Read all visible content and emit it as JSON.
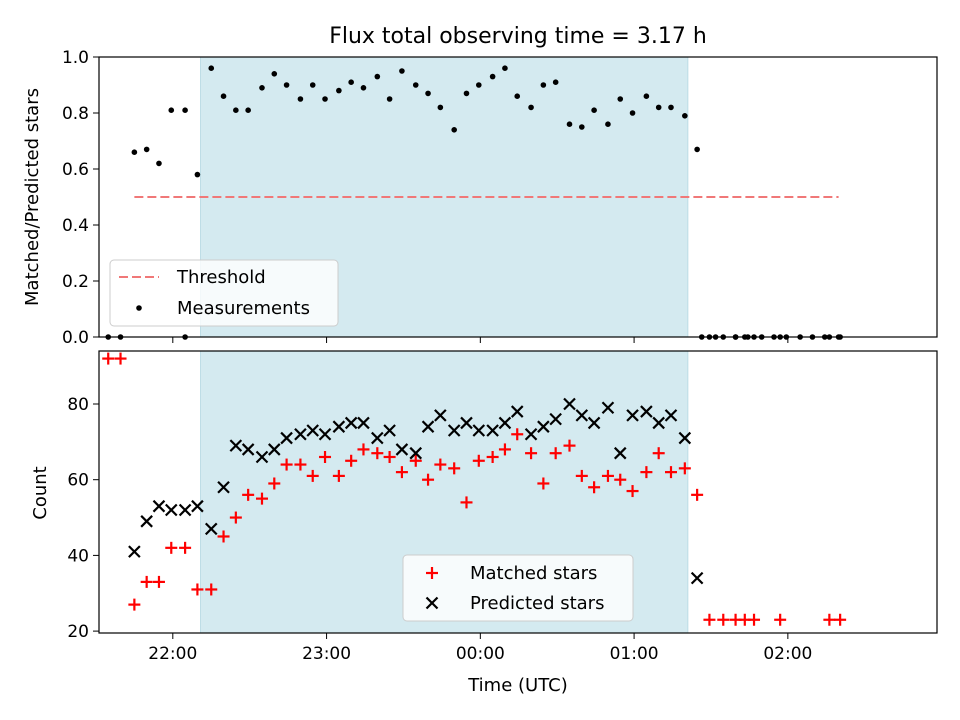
{
  "chart_data": [
    {
      "type": "scatter",
      "title": "Flux total observing time = 3.17 h",
      "xlabel": "",
      "ylabel": "Matched/Predicted stars",
      "xlim": [
        21.52,
        26.97
      ],
      "ylim": [
        0,
        1.0
      ],
      "yticks": [
        "0.0",
        "0.2",
        "0.4",
        "0.6",
        "0.8",
        "1.0"
      ],
      "shaded_span": [
        22.18,
        25.35
      ],
      "shade_color": "#d4eaf0",
      "threshold": {
        "name": "Threshold",
        "y": 0.5,
        "x_range": [
          21.75,
          26.33
        ],
        "color": "#f07878"
      },
      "series": [
        {
          "name": "Measurements",
          "color": "#000000",
          "x": [
            21.75,
            21.83,
            21.91,
            21.99,
            22.08,
            22.16,
            22.25,
            22.33,
            22.41,
            22.49,
            22.58,
            22.66,
            22.74,
            22.83,
            22.91,
            22.99,
            23.08,
            23.16,
            23.24,
            23.33,
            23.41,
            23.49,
            23.58,
            23.66,
            23.74,
            23.83,
            23.91,
            23.99,
            24.08,
            24.16,
            24.24,
            24.33,
            24.41,
            24.49,
            24.58,
            24.66,
            24.74,
            24.83,
            24.91,
            24.99,
            25.08,
            25.16,
            25.24,
            25.33,
            25.41,
            25.49,
            25.58,
            25.66,
            25.74,
            25.83,
            25.91,
            25.99,
            26.08,
            26.16,
            26.24,
            26.33,
            21.58,
            21.66,
            22.08,
            25.44,
            25.53,
            25.66,
            25.72,
            25.78,
            25.95,
            26.27,
            26.34
          ],
          "y": [
            0.66,
            0.67,
            0.62,
            0.81,
            0.81,
            0.58,
            0.96,
            0.86,
            0.81,
            0.81,
            0.89,
            0.94,
            0.9,
            0.85,
            0.9,
            0.85,
            0.88,
            0.91,
            0.89,
            0.93,
            0.85,
            0.95,
            0.9,
            0.87,
            0.82,
            0.74,
            0.87,
            0.9,
            0.93,
            0.96,
            0.86,
            0.82,
            0.9,
            0.91,
            0.76,
            0.75,
            0.81,
            0.76,
            0.85,
            0.8,
            0.86,
            0.82,
            0.82,
            0.79,
            0.67,
            0,
            0,
            0,
            0,
            0,
            0,
            0,
            0,
            0,
            0,
            0,
            0,
            0,
            0,
            0,
            0,
            0,
            0,
            0,
            0,
            0,
            0
          ]
        }
      ],
      "legend": {
        "placement": "lower-left",
        "entries": [
          "Threshold",
          "Measurements"
        ]
      }
    },
    {
      "type": "scatter",
      "title": "",
      "xlabel": "Time (UTC)",
      "ylabel": "Count",
      "xlim": [
        21.52,
        26.97
      ],
      "ylim": [
        19.5,
        94
      ],
      "yticks": [
        "20",
        "40",
        "60",
        "80"
      ],
      "xticks": [
        "22:00",
        "23:00",
        "00:00",
        "01:00",
        "02:00"
      ],
      "shaded_span": [
        22.18,
        25.35
      ],
      "series": [
        {
          "name": "Matched stars",
          "marker": "plus",
          "color": "#ff0000",
          "x": [
            21.58,
            21.66,
            21.75,
            21.83,
            21.91,
            21.99,
            22.08,
            22.16,
            22.25,
            22.33,
            22.41,
            22.49,
            22.58,
            22.66,
            22.74,
            22.83,
            22.91,
            22.99,
            23.08,
            23.16,
            23.24,
            23.33,
            23.41,
            23.49,
            23.58,
            23.66,
            23.74,
            23.83,
            23.91,
            23.99,
            24.08,
            24.16,
            24.24,
            24.33,
            24.41,
            24.49,
            24.58,
            24.66,
            24.74,
            24.83,
            24.91,
            24.99,
            25.08,
            25.16,
            25.24,
            25.33,
            25.41,
            25.49,
            25.58,
            25.66,
            25.72,
            25.78,
            25.95,
            26.27,
            26.34
          ],
          "y": [
            92,
            92,
            27,
            33,
            33,
            42,
            42,
            31,
            31,
            45,
            50,
            56,
            55,
            59,
            64,
            64,
            61,
            66,
            61,
            65,
            68,
            67,
            66,
            62,
            65,
            60,
            64,
            63,
            54,
            65,
            66,
            68,
            72,
            67,
            59,
            67,
            69,
            61,
            58,
            61,
            60,
            57,
            62,
            67,
            62,
            63,
            56,
            23,
            23,
            23,
            23,
            23,
            23,
            23,
            23
          ]
        },
        {
          "name": "Predicted stars",
          "marker": "x",
          "color": "#000000",
          "x": [
            21.75,
            21.83,
            21.91,
            21.99,
            22.08,
            22.16,
            22.25,
            22.33,
            22.41,
            22.49,
            22.58,
            22.66,
            22.74,
            22.83,
            22.91,
            22.99,
            23.08,
            23.16,
            23.24,
            23.33,
            23.41,
            23.49,
            23.58,
            23.66,
            23.74,
            23.83,
            23.91,
            23.99,
            24.08,
            24.16,
            24.24,
            24.33,
            24.41,
            24.49,
            24.58,
            24.66,
            24.74,
            24.83,
            24.91,
            24.99,
            25.08,
            25.16,
            25.24,
            25.33,
            25.41
          ],
          "y": [
            41,
            49,
            53,
            52,
            52,
            53,
            47,
            58,
            69,
            68,
            66,
            68,
            71,
            72,
            73,
            72,
            74,
            75,
            75,
            71,
            73,
            68,
            67,
            74,
            77,
            73,
            75,
            73,
            73,
            75,
            78,
            72,
            74,
            76,
            80,
            77,
            75,
            79,
            67,
            77,
            78,
            75,
            77,
            71,
            34
          ]
        }
      ],
      "legend": {
        "placement": "lower-center",
        "entries": [
          "Matched stars",
          "Predicted stars"
        ]
      }
    }
  ]
}
